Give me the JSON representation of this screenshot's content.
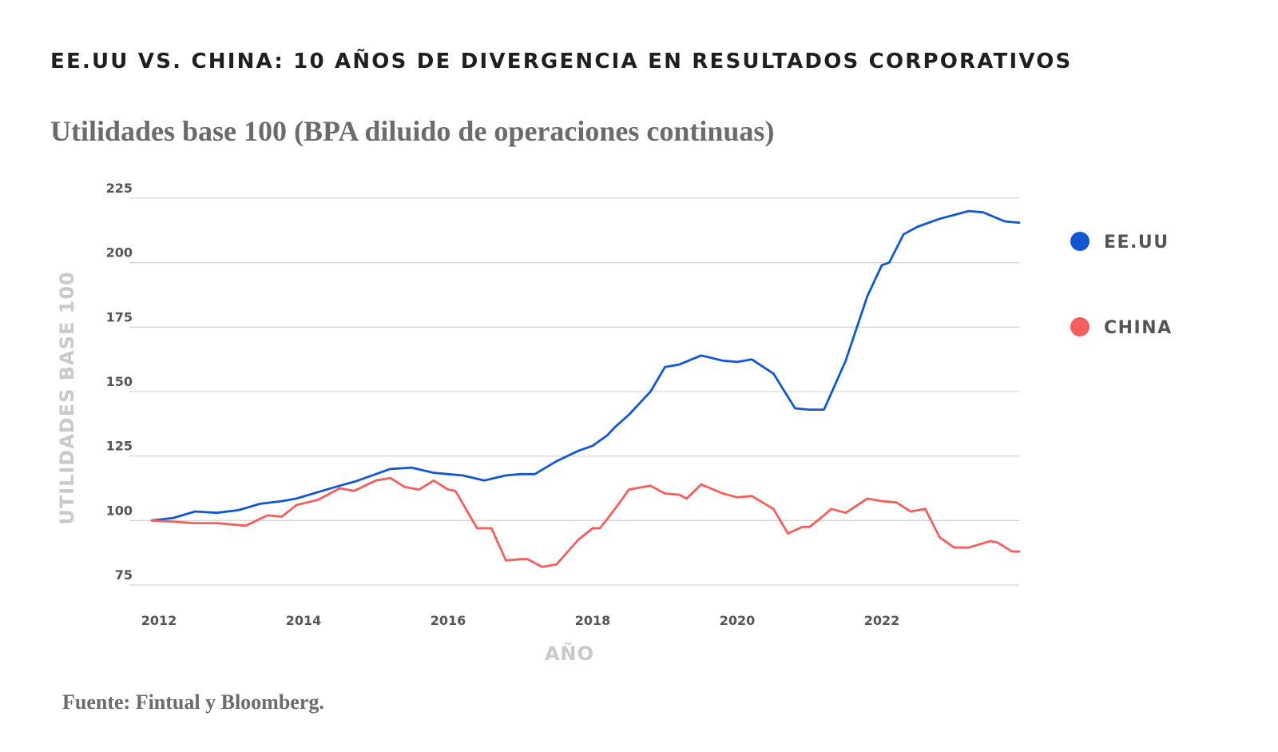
{
  "title": "EE.UU VS. CHINA: 10 AÑOS DE DIVERGENCIA EN RESULTADOS CORPORATIVOS",
  "subtitle": "Utilidades base 100 (BPA diluido de operaciones continuas)",
  "source": "Fuente: Fintual y Bloomberg.",
  "colors": {
    "usa": "#1357d0",
    "china": "#f25f5c",
    "grid": "#d6d6d6",
    "axis_title": "#c9c9c9"
  },
  "chart_data": {
    "type": "line",
    "title": "EE.UU VS. CHINA: 10 AÑOS DE DIVERGENCIA EN RESULTADOS CORPORATIVOS",
    "subtitle": "Utilidades base 100 (BPA diluido de operaciones continuas)",
    "xlabel": "AÑO",
    "ylabel": "UTILIDADES BASE 100",
    "xlim": [
      2011.9,
      2023.9
    ],
    "ylim": [
      75,
      225
    ],
    "x_ticks": [
      2012,
      2014,
      2016,
      2018,
      2020,
      2022
    ],
    "y_ticks": [
      75,
      100,
      125,
      150,
      175,
      200,
      225
    ],
    "grid": true,
    "legend_position": "right",
    "series": [
      {
        "name": "EE.UU",
        "color": "#1357d0",
        "points": [
          [
            2011.9,
            100
          ],
          [
            2012.2,
            101
          ],
          [
            2012.5,
            103.5
          ],
          [
            2012.8,
            103
          ],
          [
            2013.1,
            104
          ],
          [
            2013.4,
            106.5
          ],
          [
            2013.7,
            107.5
          ],
          [
            2013.9,
            108.5
          ],
          [
            2014.2,
            111
          ],
          [
            2014.5,
            113.5
          ],
          [
            2014.7,
            115
          ],
          [
            2015.0,
            118
          ],
          [
            2015.2,
            120
          ],
          [
            2015.5,
            120.5
          ],
          [
            2015.8,
            118.5
          ],
          [
            2016.0,
            118
          ],
          [
            2016.2,
            117.5
          ],
          [
            2016.5,
            115.5
          ],
          [
            2016.8,
            117.5
          ],
          [
            2017.0,
            118
          ],
          [
            2017.2,
            118
          ],
          [
            2017.5,
            123
          ],
          [
            2017.8,
            127
          ],
          [
            2018.0,
            129
          ],
          [
            2018.2,
            133
          ],
          [
            2018.3,
            136
          ],
          [
            2018.5,
            141
          ],
          [
            2018.8,
            150
          ],
          [
            2019.0,
            159.5
          ],
          [
            2019.2,
            160.5
          ],
          [
            2019.5,
            164
          ],
          [
            2019.8,
            162
          ],
          [
            2020.0,
            161.5
          ],
          [
            2020.2,
            162.5
          ],
          [
            2020.5,
            157
          ],
          [
            2020.8,
            143.5
          ],
          [
            2021.0,
            143
          ],
          [
            2021.2,
            143
          ],
          [
            2021.5,
            162
          ],
          [
            2021.8,
            187
          ],
          [
            2022.0,
            199
          ],
          [
            2022.1,
            200
          ],
          [
            2022.3,
            211
          ],
          [
            2022.5,
            214
          ],
          [
            2022.8,
            217
          ],
          [
            2023.0,
            218.5
          ],
          [
            2023.2,
            220
          ],
          [
            2023.4,
            219.5
          ],
          [
            2023.7,
            216
          ],
          [
            2023.9,
            215.5
          ]
        ]
      },
      {
        "name": "CHINA",
        "color": "#f25f5c",
        "points": [
          [
            2011.9,
            100
          ],
          [
            2012.2,
            99.5
          ],
          [
            2012.5,
            99
          ],
          [
            2012.8,
            99
          ],
          [
            2013.0,
            98.5
          ],
          [
            2013.2,
            98
          ],
          [
            2013.5,
            102
          ],
          [
            2013.7,
            101.5
          ],
          [
            2013.9,
            106
          ],
          [
            2014.2,
            108
          ],
          [
            2014.5,
            112.5
          ],
          [
            2014.7,
            111.5
          ],
          [
            2015.0,
            115.5
          ],
          [
            2015.2,
            116.5
          ],
          [
            2015.4,
            113
          ],
          [
            2015.6,
            112
          ],
          [
            2015.8,
            115.5
          ],
          [
            2016.0,
            112
          ],
          [
            2016.1,
            111.5
          ],
          [
            2016.4,
            97
          ],
          [
            2016.6,
            97
          ],
          [
            2016.8,
            84.5
          ],
          [
            2017.0,
            85
          ],
          [
            2017.1,
            85
          ],
          [
            2017.3,
            82
          ],
          [
            2017.5,
            83
          ],
          [
            2017.8,
            92.5
          ],
          [
            2018.0,
            97
          ],
          [
            2018.1,
            97
          ],
          [
            2018.2,
            100.5
          ],
          [
            2018.4,
            108
          ],
          [
            2018.5,
            112
          ],
          [
            2018.8,
            113.5
          ],
          [
            2019.0,
            110.5
          ],
          [
            2019.2,
            110
          ],
          [
            2019.3,
            108.5
          ],
          [
            2019.5,
            114
          ],
          [
            2019.8,
            110.5
          ],
          [
            2020.0,
            109
          ],
          [
            2020.2,
            109.5
          ],
          [
            2020.5,
            104.5
          ],
          [
            2020.7,
            95
          ],
          [
            2020.9,
            97.5
          ],
          [
            2021.0,
            97.5
          ],
          [
            2021.2,
            102
          ],
          [
            2021.3,
            104.5
          ],
          [
            2021.5,
            103
          ],
          [
            2021.8,
            108.5
          ],
          [
            2022.0,
            107.5
          ],
          [
            2022.2,
            107
          ],
          [
            2022.4,
            103.5
          ],
          [
            2022.6,
            104.5
          ],
          [
            2022.8,
            93.5
          ],
          [
            2023.0,
            89.5
          ],
          [
            2023.2,
            89.5
          ],
          [
            2023.5,
            92
          ],
          [
            2023.6,
            91.5
          ],
          [
            2023.8,
            88
          ],
          [
            2023.9,
            88
          ]
        ]
      }
    ]
  }
}
